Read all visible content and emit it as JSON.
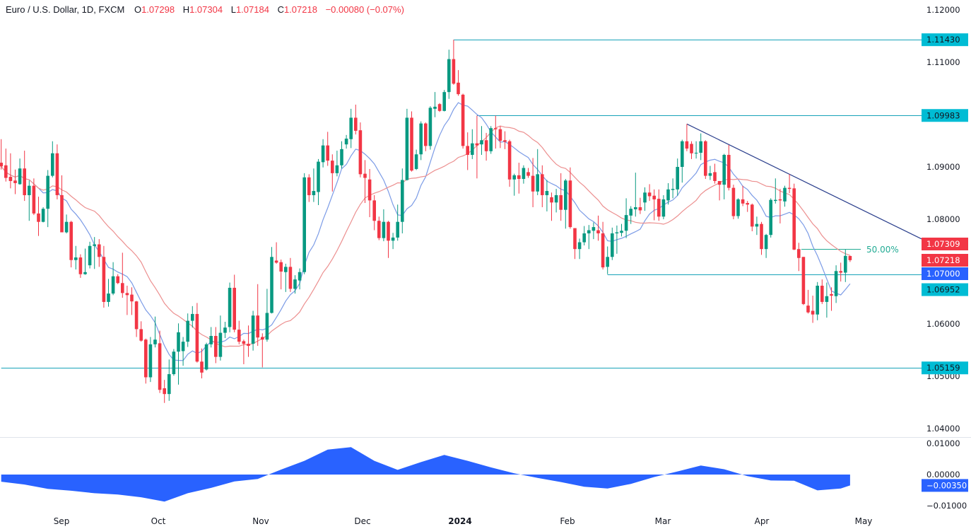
{
  "header": {
    "symbol": "Euro / U.S. Dollar, 1D, FXCM",
    "o_key": "O",
    "o": "1.07298",
    "h_key": "H",
    "h": "1.07304",
    "l_key": "L",
    "l": "1.07184",
    "c_key": "C",
    "c": "1.07218",
    "change": "−0.00080 (−0.07%)"
  },
  "colors": {
    "up": "#089981",
    "down": "#f23645",
    "ma_fast": "#7b9be6",
    "ma_slow": "#ec8f8f",
    "level_line": "#17a2b8",
    "trend_line": "#2a3e8c",
    "oscillator": "#2962ff",
    "label_cyan": "#00bcd4",
    "label_red": "#f23645",
    "label_blue": "#2962ff"
  },
  "chart_data": {
    "type": "candlestick",
    "timeframe": "1D",
    "y_ticks": [
      "1.12000",
      "1.11000",
      "1.09000",
      "1.08000",
      "1.06000",
      "1.05000",
      "1.04000"
    ],
    "ylim": [
      1.04,
      1.12
    ],
    "x_ticks": [
      "Sep",
      "Oct",
      "Nov",
      "Dec",
      "2024",
      "Feb",
      "Mar",
      "Apr",
      "May"
    ],
    "candles_ohlc": [
      [
        1.0908,
        1.0953,
        1.0895,
        1.0901
      ],
      [
        1.0903,
        1.0935,
        1.0872,
        1.0879
      ],
      [
        1.0881,
        1.0926,
        1.0859,
        1.0873
      ],
      [
        1.0874,
        1.0895,
        1.0848,
        1.0869
      ],
      [
        1.0867,
        1.0916,
        1.0866,
        1.0897
      ],
      [
        1.0897,
        1.0931,
        1.0835,
        1.0846
      ],
      [
        1.0846,
        1.0874,
        1.0797,
        1.0864
      ],
      [
        1.0864,
        1.0878,
        1.0808,
        1.0811
      ],
      [
        1.0811,
        1.0843,
        1.0768,
        1.0795
      ],
      [
        1.0795,
        1.0823,
        1.0794,
        1.082
      ],
      [
        1.082,
        1.0894,
        1.0785,
        1.0883
      ],
      [
        1.0883,
        1.0949,
        1.088,
        1.0926
      ],
      [
        1.0926,
        1.0943,
        1.0838,
        1.0846
      ],
      [
        1.0846,
        1.0884,
        1.0775,
        1.0775
      ],
      [
        1.0775,
        1.0809,
        1.0773,
        1.0795
      ],
      [
        1.0795,
        1.0797,
        1.0708,
        1.0722
      ],
      [
        1.0722,
        1.0749,
        1.0704,
        1.0727
      ],
      [
        1.0727,
        1.0733,
        1.0688,
        1.0695
      ],
      [
        1.0695,
        1.0744,
        1.0694,
        1.0699
      ],
      [
        1.0712,
        1.0757,
        1.0706,
        1.0749
      ],
      [
        1.0749,
        1.0766,
        1.0705,
        1.0752
      ],
      [
        1.0752,
        1.0762,
        1.0709,
        1.0728
      ],
      [
        1.0728,
        1.0749,
        1.0631,
        1.0642
      ],
      [
        1.0642,
        1.0686,
        1.0633,
        1.0658
      ],
      [
        1.0658,
        1.0718,
        1.0655,
        1.0691
      ],
      [
        1.0691,
        1.0695,
        1.0676,
        1.0678
      ],
      [
        1.0678,
        1.0736,
        1.065,
        1.0659
      ],
      [
        1.0659,
        1.0673,
        1.0617,
        1.0655
      ],
      [
        1.0656,
        1.067,
        1.0617,
        1.0643
      ],
      [
        1.0643,
        1.0644,
        1.0575,
        1.059
      ],
      [
        1.059,
        1.0605,
        1.0566,
        1.0568
      ],
      [
        1.057,
        1.0572,
        1.0486,
        1.0498
      ],
      [
        1.0498,
        1.0575,
        1.0489,
        1.0561
      ],
      [
        1.0561,
        1.0614,
        1.0555,
        1.057
      ],
      [
        1.0563,
        1.0587,
        1.0468,
        1.0474
      ],
      [
        1.0477,
        1.0493,
        1.0449,
        1.0466
      ],
      [
        1.0466,
        1.0532,
        1.0453,
        1.0504
      ],
      [
        1.0504,
        1.0552,
        1.0501,
        1.0547
      ],
      [
        1.0547,
        1.0601,
        1.0484,
        1.0584
      ],
      [
        1.0548,
        1.0575,
        1.052,
        1.0566
      ],
      [
        1.0566,
        1.062,
        1.0556,
        1.0606
      ],
      [
        1.0606,
        1.0634,
        1.0593,
        1.0619
      ],
      [
        1.0619,
        1.064,
        1.0526,
        1.0528
      ],
      [
        1.0528,
        1.0553,
        1.0496,
        1.0507
      ],
      [
        1.0513,
        1.0564,
        1.0511,
        1.0561
      ],
      [
        1.0561,
        1.0594,
        1.0555,
        1.0577
      ],
      [
        1.0577,
        1.0594,
        1.0525,
        1.0537
      ],
      [
        1.0537,
        1.0616,
        1.053,
        1.0583
      ],
      [
        1.0583,
        1.0604,
        1.0573,
        1.0593
      ],
      [
        1.0594,
        1.0679,
        1.0584,
        1.0669
      ],
      [
        1.0669,
        1.0694,
        1.0584,
        1.0589
      ],
      [
        1.0589,
        1.0606,
        1.0561,
        1.0566
      ],
      [
        1.0567,
        1.057,
        1.0523,
        1.0562
      ],
      [
        1.0562,
        1.0597,
        1.0537,
        1.0558
      ],
      [
        1.0562,
        1.0625,
        1.0549,
        1.0616
      ],
      [
        1.0616,
        1.0676,
        1.0558,
        1.0574
      ],
      [
        1.0575,
        1.0582,
        1.0517,
        1.057
      ],
      [
        1.057,
        1.0667,
        1.0566,
        1.0621
      ],
      [
        1.0621,
        1.0747,
        1.062,
        1.0728
      ],
      [
        1.0721,
        1.0756,
        1.0715,
        1.0717
      ],
      [
        1.0718,
        1.0723,
        1.0666,
        1.07
      ],
      [
        1.0699,
        1.0715,
        1.0661,
        1.0709
      ],
      [
        1.0709,
        1.0726,
        1.0661,
        1.0667
      ],
      [
        1.0667,
        1.0693,
        1.0658,
        1.0685
      ],
      [
        1.0683,
        1.0706,
        1.0666,
        1.0699
      ],
      [
        1.0699,
        1.0888,
        1.0695,
        1.088
      ],
      [
        1.088,
        1.0886,
        1.0833,
        1.0846
      ],
      [
        1.0846,
        1.0897,
        1.0833,
        1.0854
      ],
      [
        1.0852,
        1.0915,
        1.0827,
        1.091
      ],
      [
        1.0909,
        1.0953,
        1.0899,
        1.0941
      ],
      [
        1.0941,
        1.0967,
        1.0902,
        1.0912
      ],
      [
        1.0912,
        1.0924,
        1.0853,
        1.0888
      ],
      [
        1.0888,
        1.0931,
        1.0882,
        1.0903
      ],
      [
        1.0903,
        1.0949,
        1.0897,
        1.0934
      ],
      [
        1.0943,
        1.0961,
        1.0935,
        1.0954
      ],
      [
        1.0953,
        1.1011,
        1.0936,
        1.0994
      ],
      [
        1.0994,
        1.1019,
        1.0962,
        1.0969
      ],
      [
        1.097,
        1.0985,
        1.088,
        1.0886
      ],
      [
        1.0887,
        1.0913,
        1.0831,
        1.0879
      ],
      [
        1.0876,
        1.0896,
        1.0804,
        1.0836
      ],
      [
        1.0836,
        1.0846,
        1.0779,
        1.0797
      ],
      [
        1.0797,
        1.0805,
        1.076,
        1.0764
      ],
      [
        1.0764,
        1.0819,
        1.0758,
        1.0795
      ],
      [
        1.0795,
        1.0797,
        1.0726,
        1.0759
      ],
      [
        1.0759,
        1.0774,
        1.0743,
        1.0765
      ],
      [
        1.0765,
        1.0828,
        1.0759,
        1.0795
      ],
      [
        1.0795,
        1.0897,
        1.0773,
        1.0875
      ],
      [
        1.0875,
        1.1011,
        1.0874,
        1.0994
      ],
      [
        1.0994,
        1.1006,
        1.0891,
        1.0893
      ],
      [
        1.0896,
        1.0933,
        1.0894,
        1.0924
      ],
      [
        1.0924,
        1.0987,
        1.0913,
        1.0983
      ],
      [
        1.0983,
        1.0985,
        1.093,
        1.094
      ],
      [
        1.094,
        1.1016,
        1.0933,
        1.1013
      ],
      [
        1.1011,
        1.1043,
        1.0995,
        1.1015
      ],
      [
        1.102,
        1.1022,
        1.1005,
        1.1007
      ],
      [
        1.1007,
        1.1047,
        1.1006,
        1.1043
      ],
      [
        1.1043,
        1.1124,
        1.103,
        1.1106
      ],
      [
        1.1106,
        1.1143,
        1.1057,
        1.1059
      ],
      [
        1.1061,
        1.1085,
        1.1036,
        1.1039
      ],
      [
        1.1038,
        1.104,
        1.0935,
        1.094
      ],
      [
        1.094,
        1.0966,
        1.0894,
        1.0923
      ],
      [
        1.0923,
        1.0972,
        1.0915,
        1.0945
      ],
      [
        1.0945,
        1.0998,
        1.0878,
        1.0941
      ],
      [
        1.0943,
        1.0978,
        1.0923,
        1.0951
      ],
      [
        1.0951,
        1.0965,
        1.0912,
        1.093
      ],
      [
        1.093,
        1.0978,
        1.0925,
        1.0974
      ],
      [
        1.0974,
        1.0998,
        1.0935,
        1.0972
      ],
      [
        1.0972,
        1.0978,
        1.0936,
        1.095
      ],
      [
        1.0951,
        1.0968,
        1.0934,
        1.0948
      ],
      [
        1.0949,
        1.0952,
        1.0862,
        1.0876
      ],
      [
        1.0876,
        1.0887,
        1.0845,
        1.0884
      ],
      [
        1.0884,
        1.0908,
        1.0849,
        1.0877
      ],
      [
        1.0877,
        1.0903,
        1.0868,
        1.0898
      ],
      [
        1.089,
        1.0898,
        1.0879,
        1.0883
      ],
      [
        1.0883,
        1.0917,
        1.0823,
        1.0853
      ],
      [
        1.0853,
        1.0934,
        1.0846,
        1.0886
      ],
      [
        1.0886,
        1.0903,
        1.0823,
        1.0846
      ],
      [
        1.0846,
        1.0875,
        1.0815,
        1.0854
      ],
      [
        1.0842,
        1.0851,
        1.0797,
        1.0832
      ],
      [
        1.0832,
        1.0858,
        1.0813,
        1.0846
      ],
      [
        1.0846,
        1.0888,
        1.0797,
        1.0818
      ],
      [
        1.0818,
        1.0877,
        1.0782,
        1.0874
      ],
      [
        1.0874,
        1.0899,
        1.0782,
        1.0785
      ],
      [
        1.0783,
        1.0783,
        1.0724,
        1.0743
      ],
      [
        1.0743,
        1.0763,
        1.0724,
        1.0756
      ],
      [
        1.0756,
        1.0787,
        1.075,
        1.0773
      ],
      [
        1.0773,
        1.0789,
        1.0743,
        1.0779
      ],
      [
        1.0778,
        1.0794,
        1.0762,
        1.0785
      ],
      [
        1.0779,
        1.0807,
        1.0759,
        1.0773
      ],
      [
        1.0773,
        1.0795,
        1.0704,
        1.0708
      ],
      [
        1.0709,
        1.0748,
        1.0695,
        1.0728
      ],
      [
        1.0728,
        1.0784,
        1.0722,
        1.0773
      ],
      [
        1.0773,
        1.0788,
        1.0734,
        1.0775
      ],
      [
        1.0774,
        1.0791,
        1.0767,
        1.0778
      ],
      [
        1.0778,
        1.084,
        1.0764,
        1.0808
      ],
      [
        1.0807,
        1.0825,
        1.0791,
        1.082
      ],
      [
        1.0819,
        1.0889,
        1.0805,
        1.0823
      ],
      [
        1.0823,
        1.0841,
        1.081,
        1.0817
      ],
      [
        1.0832,
        1.0861,
        1.0816,
        1.0851
      ],
      [
        1.0851,
        1.0867,
        1.0835,
        1.0844
      ],
      [
        1.0845,
        1.0857,
        1.0798,
        1.0838
      ],
      [
        1.0839,
        1.0857,
        1.0797,
        1.0805
      ],
      [
        1.0805,
        1.0846,
        1.08,
        1.0838
      ],
      [
        1.0836,
        1.0869,
        1.0828,
        1.0857
      ],
      [
        1.0856,
        1.0878,
        1.084,
        1.0858
      ],
      [
        1.0857,
        1.0916,
        1.0845,
        1.09
      ],
      [
        1.09,
        1.0952,
        1.087,
        1.0949
      ],
      [
        1.0949,
        1.0982,
        1.093,
        1.0935
      ],
      [
        1.0944,
        1.0949,
        1.0915,
        1.0926
      ],
      [
        1.0926,
        1.0949,
        1.0916,
        1.0927
      ],
      [
        1.0927,
        1.0964,
        1.0913,
        1.0949
      ],
      [
        1.0949,
        1.0951,
        1.0877,
        1.0883
      ],
      [
        1.0883,
        1.0902,
        1.0875,
        1.0888
      ],
      [
        1.089,
        1.0906,
        1.0868,
        1.0873
      ],
      [
        1.0873,
        1.0873,
        1.0836,
        1.0866
      ],
      [
        1.0866,
        1.0925,
        1.0838,
        1.0923
      ],
      [
        1.0923,
        1.0942,
        1.0855,
        1.086
      ],
      [
        1.086,
        1.0866,
        1.08,
        1.0806
      ],
      [
        1.0806,
        1.084,
        1.0801,
        1.0838
      ],
      [
        1.0838,
        1.0864,
        1.0825,
        1.083
      ],
      [
        1.0831,
        1.0835,
        1.0814,
        1.0828
      ],
      [
        1.0828,
        1.083,
        1.0777,
        1.0786
      ],
      [
        1.0786,
        1.0805,
        1.077,
        1.0791
      ],
      [
        1.0791,
        1.0795,
        1.0732,
        1.0743
      ],
      [
        1.0743,
        1.0772,
        1.0726,
        1.077
      ],
      [
        1.077,
        1.084,
        1.0765,
        1.0837
      ],
      [
        1.0835,
        1.0878,
        1.083,
        1.0837
      ],
      [
        1.0838,
        1.0858,
        1.0792,
        1.0836
      ],
      [
        1.0834,
        1.0864,
        1.0824,
        1.086
      ],
      [
        1.086,
        1.0886,
        1.085,
        1.0858
      ],
      [
        1.0859,
        1.0868,
        1.0741,
        1.0742
      ],
      [
        1.0743,
        1.0755,
        1.0701,
        1.0726
      ],
      [
        1.0728,
        1.0728,
        1.0636,
        1.0638
      ],
      [
        1.0635,
        1.0665,
        1.062,
        1.0622
      ],
      [
        1.0625,
        1.0654,
        1.0602,
        1.0618
      ],
      [
        1.0618,
        1.068,
        1.0607,
        1.0673
      ],
      [
        1.0673,
        1.0685,
        1.0638,
        1.0642
      ],
      [
        1.0642,
        1.0679,
        1.0612,
        1.0653
      ],
      [
        1.0657,
        1.067,
        1.0625,
        1.0654
      ],
      [
        1.0653,
        1.0712,
        1.064,
        1.0701
      ],
      [
        1.0701,
        1.0717,
        1.0681,
        1.0698
      ],
      [
        1.0698,
        1.0742,
        1.068,
        1.073
      ],
      [
        1.07298,
        1.07304,
        1.07184,
        1.07218
      ]
    ],
    "moving_averages": [
      {
        "kind": "SMA",
        "length": 9,
        "color_key": "ma_fast",
        "last_value": "1.07000"
      },
      {
        "kind": "SMA",
        "length": 21,
        "color_key": "ma_slow",
        "last_value": "1.07309"
      }
    ],
    "horizontal_levels": [
      {
        "value": 1.1143,
        "label": "1.11430",
        "from_candle": 97
      },
      {
        "value": 1.09983,
        "label": "1.09983",
        "from_candle": 102
      },
      {
        "value": 1.06952,
        "label": "1.06952",
        "from_candle": 130
      },
      {
        "value": 1.05159,
        "label": "1.05159",
        "from_candle": 0
      }
    ],
    "trend_line": {
      "from": [
        147,
        1.0982
      ],
      "to": [
        169,
        1.0886
      ]
    },
    "fib_level": {
      "value": 1.0743,
      "label": "50.00%",
      "from_candle": 172,
      "to_candle": 184
    },
    "price_labels": [
      {
        "value": 1.07309,
        "text": "1.07309",
        "color_key": "label_red"
      },
      {
        "value": 1.07218,
        "text": "1.07218",
        "color_key": "label_red"
      },
      {
        "value": 1.07,
        "text": "1.07000",
        "color_key": "label_blue"
      }
    ],
    "oscillator": {
      "y_ticks": [
        "0.01000",
        "0.00000",
        "−0.01000"
      ],
      "ylim": [
        -0.01,
        0.01
      ],
      "last_label": "−0.00350",
      "points": [
        [
          0,
          -0.0023
        ],
        [
          5,
          -0.0032
        ],
        [
          10,
          -0.0046
        ],
        [
          15,
          -0.0052
        ],
        [
          20,
          -0.006
        ],
        [
          25,
          -0.0064
        ],
        [
          30,
          -0.0073
        ],
        [
          35,
          -0.0087
        ],
        [
          40,
          -0.006
        ],
        [
          45,
          -0.0043
        ],
        [
          50,
          -0.0022
        ],
        [
          55,
          -0.0014
        ],
        [
          60,
          0.0016
        ],
        [
          65,
          0.0044
        ],
        [
          70,
          0.008
        ],
        [
          75,
          0.0088
        ],
        [
          80,
          0.0044
        ],
        [
          85,
          0.0015
        ],
        [
          90,
          0.004
        ],
        [
          95,
          0.0063
        ],
        [
          100,
          0.0044
        ],
        [
          105,
          0.0023
        ],
        [
          110,
          0.0004
        ],
        [
          115,
          -0.0011
        ],
        [
          120,
          -0.0024
        ],
        [
          125,
          -0.0039
        ],
        [
          130,
          -0.0045
        ],
        [
          135,
          -0.003
        ],
        [
          140,
          -0.0008
        ],
        [
          145,
          0.001
        ],
        [
          150,
          0.0029
        ],
        [
          155,
          0.0017
        ],
        [
          160,
          -0.0005
        ],
        [
          165,
          -0.0019
        ],
        [
          170,
          -0.002
        ],
        [
          175,
          -0.0051
        ],
        [
          180,
          -0.0045
        ],
        [
          182,
          -0.0035
        ]
      ]
    }
  }
}
